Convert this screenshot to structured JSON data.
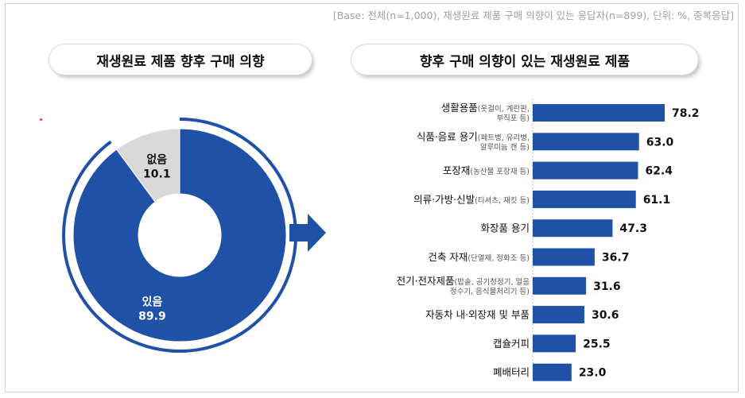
{
  "base_note": "[Base: 전체(n=1,000), 재생원료 제품 구매 의향이 있는 응답자(n=899), 단위: %, 중복응답]",
  "left_title": "재생원료 제품 향후 구매 의향",
  "right_title": "향후 구매 의향이 있는 재생원료 제품",
  "colors": {
    "primary": "#1f51a6",
    "muted": "#d9d9d9",
    "arrow": "#1f51a6"
  },
  "chart_data": [
    {
      "type": "pie",
      "title": "재생원료 제품 향후 구매 의향",
      "slices": [
        {
          "label": "있음",
          "value": 89.9,
          "value_text": "89.9"
        },
        {
          "label": "없음",
          "value": 10.1,
          "value_text": "10.1"
        }
      ]
    },
    {
      "type": "bar",
      "orientation": "horizontal",
      "title": "향후 구매 의향이 있는 재생원료 제품",
      "unit": "%",
      "categories": [
        {
          "main": "생활용품",
          "sub": [
            "(옷걸이, 계란판,",
            "부직포 등)"
          ]
        },
        {
          "main": "식품·음료 용기",
          "sub": [
            "(페트병, 유리병,",
            "알루미늄 캔 등)"
          ]
        },
        {
          "main": "포장재",
          "sub": [
            "(농산물 포장재 등)"
          ]
        },
        {
          "main": "의류·가방·신발",
          "sub": [
            "(티셔츠, 재킷 등)"
          ]
        },
        {
          "main": "화장품 용기",
          "sub": []
        },
        {
          "main": "건축 자재",
          "sub": [
            "(단열재, 정화조 등)"
          ]
        },
        {
          "main": "전기·전자제품",
          "sub": [
            "(밥솥, 공기청정기, 얼음",
            "정수기, 음식물처리기 등)"
          ]
        },
        {
          "main": "자동차 내·외장재 및 부품",
          "sub": []
        },
        {
          "main": "캡슐커피",
          "sub": []
        },
        {
          "main": "폐배터리",
          "sub": []
        }
      ],
      "values": [
        78.2,
        63.0,
        62.4,
        61.1,
        47.3,
        36.7,
        31.6,
        30.6,
        25.5,
        23.0
      ],
      "value_labels": [
        "78.2",
        "63.0",
        "62.4",
        "61.1",
        "47.3",
        "36.7",
        "31.6",
        "30.6",
        "25.5",
        "23.0"
      ]
    }
  ]
}
